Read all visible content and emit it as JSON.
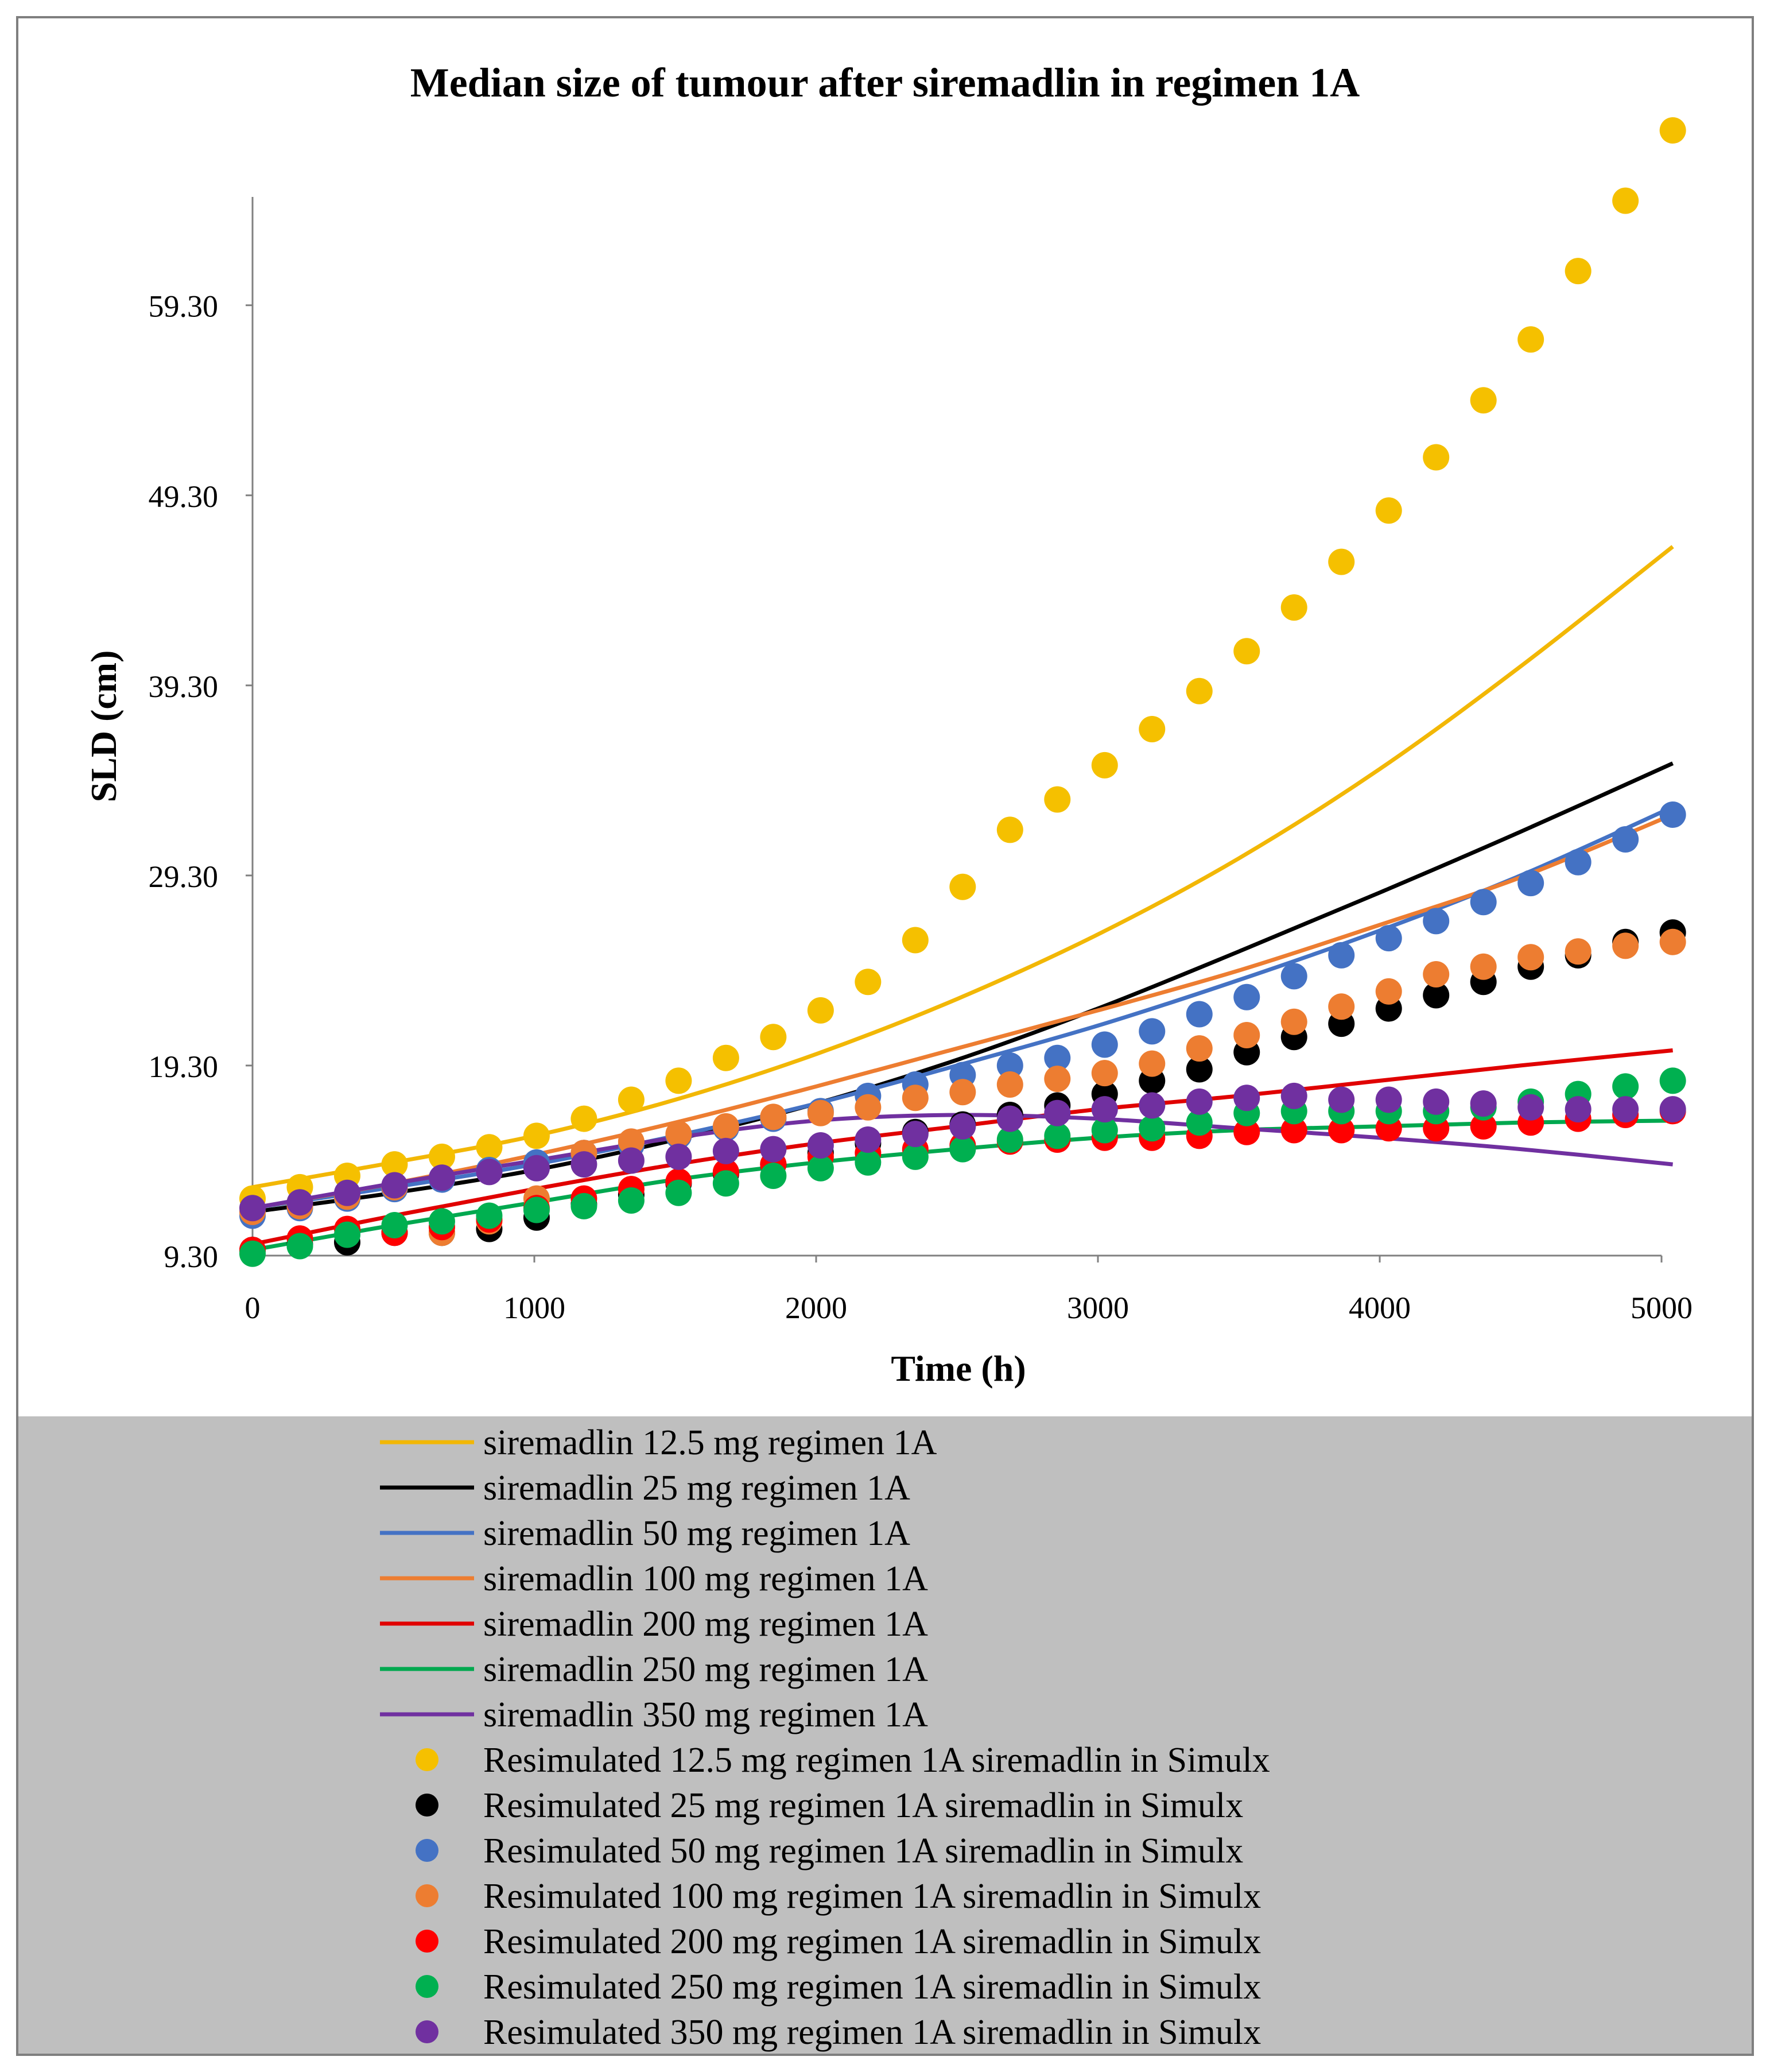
{
  "chart_data": {
    "type": "scatter",
    "title": "Median size of tumour after siremadlin in regimen 1A",
    "xlabel": "Time (h)",
    "ylabel": "SLD (cm)",
    "xlim": [
      0,
      5000
    ],
    "ylim": [
      9.3,
      65.0
    ],
    "xticks": [
      0,
      1000,
      2000,
      3000,
      4000,
      5000
    ],
    "xtick_labels": [
      "0",
      "1000",
      "2000",
      "3000",
      "4000",
      "5000"
    ],
    "yticks": [
      9.3,
      19.3,
      29.3,
      39.3,
      49.3,
      59.3
    ],
    "ytick_labels": [
      "9.30",
      "19.30",
      "29.30",
      "39.30",
      "49.30",
      "59.30"
    ],
    "grid": false,
    "legend_position": "bottom",
    "scatter_x": [
      0,
      168,
      336,
      504,
      672,
      840,
      1008,
      1176,
      1344,
      1512,
      1680,
      1848,
      2016,
      2184,
      2352,
      2520,
      2688,
      2856,
      3024,
      3192,
      3360,
      3528,
      3696,
      3864,
      4032,
      4200,
      4368,
      4536,
      4704,
      4872,
      5040
    ],
    "series": [
      {
        "name": "siremadlin 12.5 mg regimen 1A",
        "kind": "line",
        "color": "#F2B705",
        "x": [
          0,
          500,
          1000,
          1500,
          2000,
          2500,
          3000,
          3500,
          4000,
          4500,
          5040
        ],
        "values": [
          12.9,
          14.2,
          15.6,
          17.5,
          19.9,
          22.8,
          26.2,
          30.2,
          34.9,
          40.3,
          46.6
        ]
      },
      {
        "name": "siremadlin 25 mg regimen 1A",
        "kind": "line",
        "color": "#000000",
        "x": [
          0,
          500,
          1000,
          1500,
          2000,
          2500,
          3000,
          3500,
          4000,
          4500,
          5040
        ],
        "values": [
          11.6,
          12.6,
          13.8,
          15.4,
          17.3,
          19.6,
          22.3,
          25.3,
          28.4,
          31.6,
          35.2
        ]
      },
      {
        "name": "siremadlin 50 mg regimen 1A",
        "kind": "line",
        "color": "#4472C4",
        "x": [
          0,
          500,
          1000,
          1500,
          2000,
          2500,
          3000,
          3500,
          4000,
          4500,
          5040
        ],
        "values": [
          11.8,
          12.9,
          14.1,
          15.6,
          17.3,
          19.3,
          21.4,
          23.8,
          26.4,
          29.3,
          32.9
        ]
      },
      {
        "name": "siremadlin 100 mg regimen 1A",
        "kind": "line",
        "color": "#ED7D31",
        "x": [
          0,
          500,
          1000,
          1500,
          2000,
          2500,
          3000,
          3500,
          4000,
          4500,
          5040
        ],
        "values": [
          11.8,
          13.1,
          14.6,
          16.3,
          18.2,
          20.2,
          22.2,
          24.3,
          26.7,
          29.2,
          32.5
        ]
      },
      {
        "name": "siremadlin 200 mg regimen 1A",
        "kind": "line",
        "color": "#E00000",
        "x": [
          0,
          500,
          1000,
          1500,
          2000,
          2500,
          3000,
          3500,
          4000,
          4500,
          5040
        ],
        "values": [
          9.9,
          11.4,
          12.8,
          14.1,
          15.2,
          16.1,
          17.0,
          17.7,
          18.5,
          19.3,
          20.1
        ]
      },
      {
        "name": "siremadlin 250 mg regimen 1A",
        "kind": "line",
        "color": "#00A84F",
        "x": [
          0,
          500,
          1000,
          1500,
          2000,
          2500,
          3000,
          3500,
          4000,
          4500,
          5040
        ],
        "values": [
          9.6,
          10.9,
          12.1,
          13.3,
          14.2,
          14.9,
          15.5,
          15.9,
          16.1,
          16.3,
          16.4
        ]
      },
      {
        "name": "siremadlin 350 mg regimen 1A",
        "kind": "line",
        "color": "#7030A0",
        "x": [
          0,
          500,
          1000,
          1500,
          2000,
          2500,
          3000,
          3500,
          4000,
          4500,
          5040
        ],
        "values": [
          11.8,
          13.1,
          14.3,
          15.5,
          16.4,
          16.7,
          16.5,
          16.0,
          15.5,
          14.9,
          14.1
        ]
      },
      {
        "name": "Resimulated 12.5 mg regimen 1A siremadlin in Simulx",
        "kind": "points",
        "color": "#F5C000",
        "values": [
          12.3,
          12.9,
          13.5,
          14.1,
          14.5,
          15.0,
          15.6,
          16.5,
          17.5,
          18.5,
          19.7,
          20.8,
          22.2,
          23.7,
          25.9,
          28.7,
          31.7,
          33.3,
          35.1,
          37.0,
          39.0,
          41.1,
          43.4,
          45.8,
          48.5,
          51.3,
          54.3,
          57.5,
          61.1,
          64.8,
          68.5
        ]
      },
      {
        "name": "Resimulated 25 mg regimen 1A siremadlin in Simulx",
        "kind": "points",
        "color": "#000000",
        "values": [
          9.6,
          9.9,
          10.0,
          10.5,
          10.5,
          10.7,
          11.3,
          12.0,
          12.5,
          13.1,
          13.6,
          14.1,
          14.7,
          15.2,
          15.8,
          16.2,
          16.7,
          17.2,
          17.8,
          18.5,
          19.1,
          20.0,
          20.8,
          21.5,
          22.3,
          23.0,
          23.7,
          24.5,
          25.1,
          25.8,
          26.3
        ]
      },
      {
        "name": "Resimulated 50 mg regimen 1A siremadlin in Simulx",
        "kind": "points",
        "color": "#4472C4",
        "values": [
          11.4,
          11.8,
          12.3,
          12.8,
          13.3,
          13.8,
          14.2,
          14.7,
          15.1,
          15.6,
          16.0,
          16.5,
          16.9,
          17.7,
          18.3,
          18.8,
          19.3,
          19.7,
          20.4,
          21.1,
          22.0,
          22.9,
          24.0,
          25.1,
          26.0,
          26.9,
          27.9,
          28.9,
          30.0,
          31.2,
          32.5
        ]
      },
      {
        "name": "Resimulated 100 mg regimen 1A siremadlin in Simulx",
        "kind": "points",
        "color": "#ED7D31",
        "values": [
          11.6,
          11.9,
          12.4,
          12.9,
          10.5,
          11.1,
          12.3,
          14.7,
          15.3,
          15.7,
          16.1,
          16.6,
          16.8,
          17.1,
          17.6,
          17.9,
          18.3,
          18.6,
          18.9,
          19.4,
          20.2,
          20.9,
          21.6,
          22.4,
          23.2,
          24.1,
          24.5,
          25.0,
          25.3,
          25.6,
          25.8
        ]
      },
      {
        "name": "Resimulated 200 mg regimen 1A siremadlin in Simulx",
        "kind": "points",
        "color": "#FF0000",
        "values": [
          9.6,
          10.2,
          10.7,
          10.5,
          10.8,
          11.2,
          11.8,
          12.3,
          12.8,
          13.2,
          13.7,
          14.1,
          14.5,
          14.7,
          14.9,
          15.1,
          15.3,
          15.4,
          15.5,
          15.5,
          15.6,
          15.8,
          15.9,
          15.9,
          16.0,
          16.0,
          16.1,
          16.3,
          16.5,
          16.7,
          16.9
        ]
      },
      {
        "name": "Resimulated 250 mg regimen 1A siremadlin in Simulx",
        "kind": "points",
        "color": "#00B050",
        "values": [
          9.4,
          9.8,
          10.4,
          10.9,
          11.1,
          11.4,
          11.7,
          11.9,
          12.2,
          12.6,
          13.1,
          13.5,
          13.9,
          14.2,
          14.5,
          14.9,
          15.4,
          15.6,
          15.9,
          16.0,
          16.3,
          16.8,
          16.9,
          16.9,
          16.9,
          16.9,
          17.1,
          17.4,
          17.8,
          18.2,
          18.5
        ]
      },
      {
        "name": "Resimulated 350 mg regimen 1A siremadlin in Simulx",
        "kind": "points",
        "color": "#7030A0",
        "values": [
          11.8,
          12.1,
          12.6,
          13.0,
          13.4,
          13.7,
          13.9,
          14.1,
          14.3,
          14.5,
          14.8,
          14.9,
          15.1,
          15.4,
          15.7,
          16.1,
          16.5,
          16.8,
          17.0,
          17.2,
          17.4,
          17.6,
          17.7,
          17.5,
          17.5,
          17.4,
          17.3,
          17.1,
          17.0,
          17.0,
          17.0
        ]
      }
    ]
  }
}
